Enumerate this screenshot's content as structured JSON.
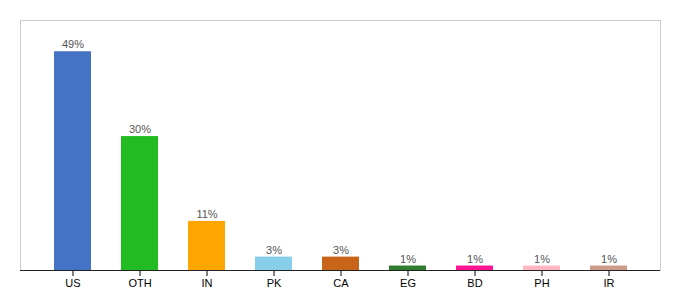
{
  "chart_data": {
    "type": "bar",
    "categories": [
      "US",
      "OTH",
      "IN",
      "PK",
      "CA",
      "EG",
      "BD",
      "PH",
      "IR"
    ],
    "values": [
      49,
      30,
      11,
      3,
      3,
      1,
      1,
      1,
      1
    ],
    "value_labels": [
      "49%",
      "30%",
      "11%",
      "3%",
      "3%",
      "1%",
      "1%",
      "1%",
      "1%"
    ],
    "colors": [
      "#4472C4",
      "#22BB22",
      "#FFA500",
      "#87CEEB",
      "#C8651B",
      "#2E7D2E",
      "#FF1493",
      "#FFB6C1",
      "#CD9B8A"
    ],
    "ylim": [
      0,
      56
    ],
    "data_labels": true,
    "tick_labels": "x",
    "grid": false
  }
}
